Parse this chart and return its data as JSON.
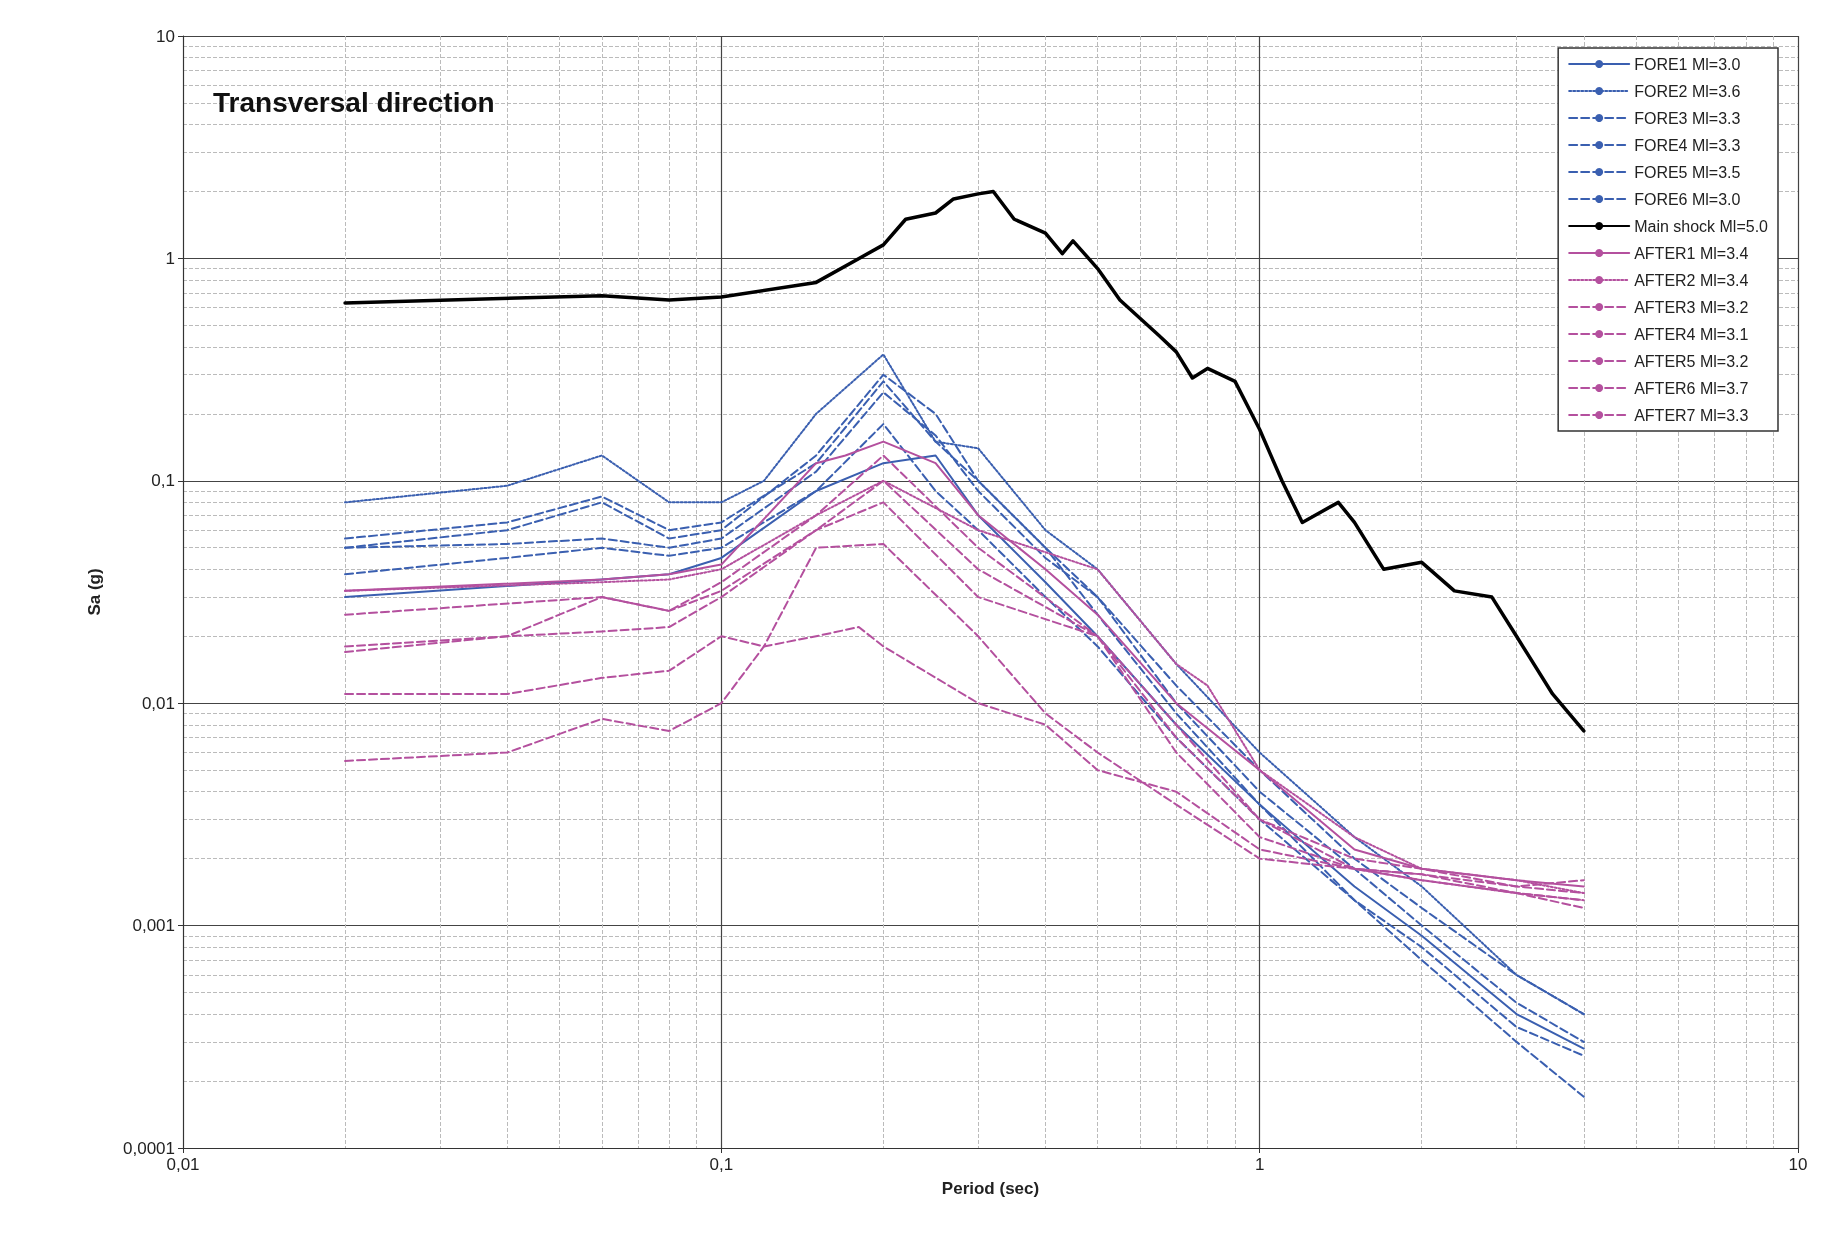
{
  "chart_data": {
    "type": "line",
    "title": "Transversal direction",
    "xlabel": "Period (sec)",
    "ylabel": "Sa (g)",
    "log": "xy",
    "grid": true,
    "legend": "top right",
    "marker": "none",
    "xlim": [
      0.01,
      10
    ],
    "ylim": [
      0.0001,
      10
    ],
    "xticks": [
      {
        "value": 0.01,
        "label": "0,01"
      },
      {
        "value": 0.1,
        "label": "0,1"
      },
      1,
      10
    ],
    "yticks": [
      {
        "value": 0.0001,
        "label": "0,0001"
      },
      {
        "value": 0.001,
        "label": "0,001"
      },
      {
        "value": 0.01,
        "label": "0,01"
      },
      {
        "value": 0.1,
        "label": "0,1"
      },
      1,
      10
    ],
    "series": [
      {
        "name": "FORE1 Ml=3.0",
        "color": "#3a5fb0",
        "line_style": "solid",
        "x": [
          0.02,
          0.06,
          0.08,
          0.1,
          0.15,
          0.2,
          0.25,
          0.3,
          0.4,
          0.5,
          0.7,
          1,
          1.5,
          2,
          3,
          4
        ],
        "values": [
          0.03,
          0.036,
          0.038,
          0.045,
          0.09,
          0.12,
          0.13,
          0.07,
          0.035,
          0.02,
          0.008,
          0.0035,
          0.0015,
          0.0009,
          0.0004,
          0.00028
        ]
      },
      {
        "name": "FORE2 Ml=3.6",
        "color": "#3a5fb0",
        "line_style": "dotted",
        "x": [
          0.02,
          0.04,
          0.06,
          0.08,
          0.1,
          0.12,
          0.15,
          0.2,
          0.25,
          0.3,
          0.4,
          0.5,
          0.7,
          1,
          1.5,
          2,
          3,
          4
        ],
        "values": [
          0.08,
          0.095,
          0.13,
          0.08,
          0.08,
          0.1,
          0.2,
          0.37,
          0.15,
          0.14,
          0.06,
          0.04,
          0.015,
          0.006,
          0.0025,
          0.0015,
          0.0006,
          0.0004
        ]
      },
      {
        "name": "FORE3 Ml=3.3",
        "color": "#3a5fb0",
        "line_style": "dashed",
        "x": [
          0.02,
          0.04,
          0.06,
          0.08,
          0.1,
          0.15,
          0.2,
          0.25,
          0.3,
          0.4,
          0.5,
          0.7,
          1,
          1.5,
          2,
          3,
          4
        ],
        "values": [
          0.055,
          0.065,
          0.085,
          0.06,
          0.065,
          0.12,
          0.28,
          0.15,
          0.1,
          0.05,
          0.03,
          0.01,
          0.004,
          0.0018,
          0.001,
          0.00045,
          0.0003
        ]
      },
      {
        "name": "FORE4 Ml=3.3",
        "color": "#3a5fb0",
        "line_style": "dashed",
        "x": [
          0.02,
          0.04,
          0.06,
          0.08,
          0.1,
          0.15,
          0.2,
          0.25,
          0.3,
          0.4,
          0.5,
          0.7,
          1,
          1.5,
          2,
          3,
          4
        ],
        "values": [
          0.038,
          0.045,
          0.05,
          0.046,
          0.05,
          0.09,
          0.18,
          0.09,
          0.06,
          0.03,
          0.018,
          0.007,
          0.003,
          0.0013,
          0.0008,
          0.00035,
          0.00026
        ]
      },
      {
        "name": "FORE5 Ml=3.5",
        "color": "#3a5fb0",
        "line_style": "dashed",
        "x": [
          0.02,
          0.04,
          0.06,
          0.08,
          0.1,
          0.15,
          0.2,
          0.25,
          0.3,
          0.4,
          0.5,
          0.7,
          1,
          1.5,
          2,
          3,
          4
        ],
        "values": [
          0.05,
          0.06,
          0.08,
          0.055,
          0.06,
          0.13,
          0.3,
          0.2,
          0.1,
          0.05,
          0.025,
          0.009,
          0.0035,
          0.0013,
          0.0007,
          0.0003,
          0.00017
        ]
      },
      {
        "name": "FORE6 Ml=3.0",
        "color": "#3a5fb0",
        "line_style": "dashed",
        "x": [
          0.02,
          0.04,
          0.06,
          0.08,
          0.1,
          0.15,
          0.2,
          0.25,
          0.3,
          0.4,
          0.5,
          0.7,
          1,
          1.5,
          2,
          3,
          4
        ],
        "values": [
          0.05,
          0.052,
          0.055,
          0.05,
          0.055,
          0.11,
          0.25,
          0.16,
          0.09,
          0.045,
          0.03,
          0.012,
          0.005,
          0.002,
          0.0012,
          0.0006,
          0.0004
        ]
      },
      {
        "name": "Main shock Ml=5.0",
        "color": "#000000",
        "line_style": "solid",
        "x": [
          0.02,
          0.06,
          0.08,
          0.1,
          0.15,
          0.2,
          0.22,
          0.25,
          0.27,
          0.3,
          0.32,
          0.35,
          0.4,
          0.43,
          0.45,
          0.5,
          0.55,
          0.65,
          0.7,
          0.75,
          0.8,
          0.9,
          1,
          1.1,
          1.2,
          1.4,
          1.5,
          1.7,
          2,
          2.3,
          2.7,
          3,
          3.5,
          4
        ],
        "values": [
          0.63,
          0.68,
          0.65,
          0.67,
          0.78,
          1.15,
          1.5,
          1.6,
          1.85,
          1.95,
          2,
          1.5,
          1.3,
          1.05,
          1.2,
          0.9,
          0.65,
          0.45,
          0.38,
          0.29,
          0.32,
          0.28,
          0.17,
          0.1,
          0.065,
          0.08,
          0.065,
          0.04,
          0.043,
          0.032,
          0.03,
          0.02,
          0.011,
          0.0075
        ]
      },
      {
        "name": "AFTER1 Ml=3.4",
        "color": "#b4509e",
        "line_style": "solid",
        "x": [
          0.02,
          0.06,
          0.08,
          0.1,
          0.15,
          0.17,
          0.2,
          0.25,
          0.3,
          0.4,
          0.5,
          0.7,
          1,
          1.5,
          2,
          3,
          4
        ],
        "values": [
          0.032,
          0.036,
          0.038,
          0.042,
          0.12,
          0.13,
          0.15,
          0.12,
          0.07,
          0.04,
          0.025,
          0.01,
          0.005,
          0.0022,
          0.0018,
          0.0016,
          0.0015
        ]
      },
      {
        "name": "AFTER2 Ml=3.4",
        "color": "#b4509e",
        "line_style": "dotted",
        "x": [
          0.02,
          0.06,
          0.08,
          0.1,
          0.15,
          0.2,
          0.3,
          0.5,
          0.7,
          0.8,
          1,
          1.5,
          2,
          3,
          4
        ],
        "values": [
          0.032,
          0.035,
          0.036,
          0.04,
          0.07,
          0.1,
          0.06,
          0.04,
          0.015,
          0.012,
          0.005,
          0.0025,
          0.0018,
          0.0016,
          0.0014
        ]
      },
      {
        "name": "AFTER3 Ml=3.2",
        "color": "#b4509e",
        "line_style": "dashed",
        "x": [
          0.02,
          0.06,
          0.08,
          0.1,
          0.15,
          0.2,
          0.3,
          0.5,
          0.7,
          1,
          1.5,
          2,
          3,
          4
        ],
        "values": [
          0.025,
          0.03,
          0.026,
          0.032,
          0.06,
          0.08,
          0.03,
          0.02,
          0.007,
          0.003,
          0.002,
          0.0018,
          0.0015,
          0.0016
        ]
      },
      {
        "name": "AFTER4 Ml=3.1",
        "color": "#b4509e",
        "line_style": "dashed",
        "x": [
          0.02,
          0.04,
          0.06,
          0.08,
          0.1,
          0.15,
          0.2,
          0.3,
          0.5,
          0.7,
          1,
          1.5,
          2,
          3,
          4
        ],
        "values": [
          0.017,
          0.02,
          0.03,
          0.026,
          0.035,
          0.07,
          0.13,
          0.05,
          0.02,
          0.008,
          0.003,
          0.0018,
          0.0017,
          0.0014,
          0.0013
        ]
      },
      {
        "name": "AFTER5 Ml=3.2",
        "color": "#b4509e",
        "line_style": "dashed",
        "x": [
          0.02,
          0.04,
          0.06,
          0.08,
          0.1,
          0.15,
          0.2,
          0.3,
          0.5,
          0.7,
          1,
          1.5,
          2,
          3,
          4
        ],
        "values": [
          0.018,
          0.02,
          0.021,
          0.022,
          0.03,
          0.06,
          0.1,
          0.04,
          0.02,
          0.006,
          0.0025,
          0.0018,
          0.0016,
          0.0014,
          0.0013
        ]
      },
      {
        "name": "AFTER6 Ml=3.7",
        "color": "#b4509e",
        "line_style": "dashed",
        "x": [
          0.02,
          0.04,
          0.06,
          0.08,
          0.1,
          0.12,
          0.15,
          0.2,
          0.3,
          0.4,
          0.5,
          0.7,
          1,
          1.5,
          2,
          3,
          4
        ],
        "values": [
          0.0055,
          0.006,
          0.0085,
          0.0075,
          0.01,
          0.018,
          0.05,
          0.052,
          0.02,
          0.009,
          0.006,
          0.0035,
          0.002,
          0.0018,
          0.0016,
          0.0014,
          0.0012
        ]
      },
      {
        "name": "AFTER7 Ml=3.3",
        "color": "#b4509e",
        "line_style": "dashed",
        "x": [
          0.02,
          0.04,
          0.06,
          0.08,
          0.1,
          0.12,
          0.15,
          0.18,
          0.2,
          0.3,
          0.4,
          0.5,
          0.7,
          1,
          1.5,
          2,
          3,
          4
        ],
        "values": [
          0.011,
          0.011,
          0.013,
          0.014,
          0.02,
          0.018,
          0.02,
          0.022,
          0.018,
          0.01,
          0.008,
          0.005,
          0.004,
          0.0022,
          0.0018,
          0.0017,
          0.0015,
          0.0014
        ]
      }
    ]
  }
}
